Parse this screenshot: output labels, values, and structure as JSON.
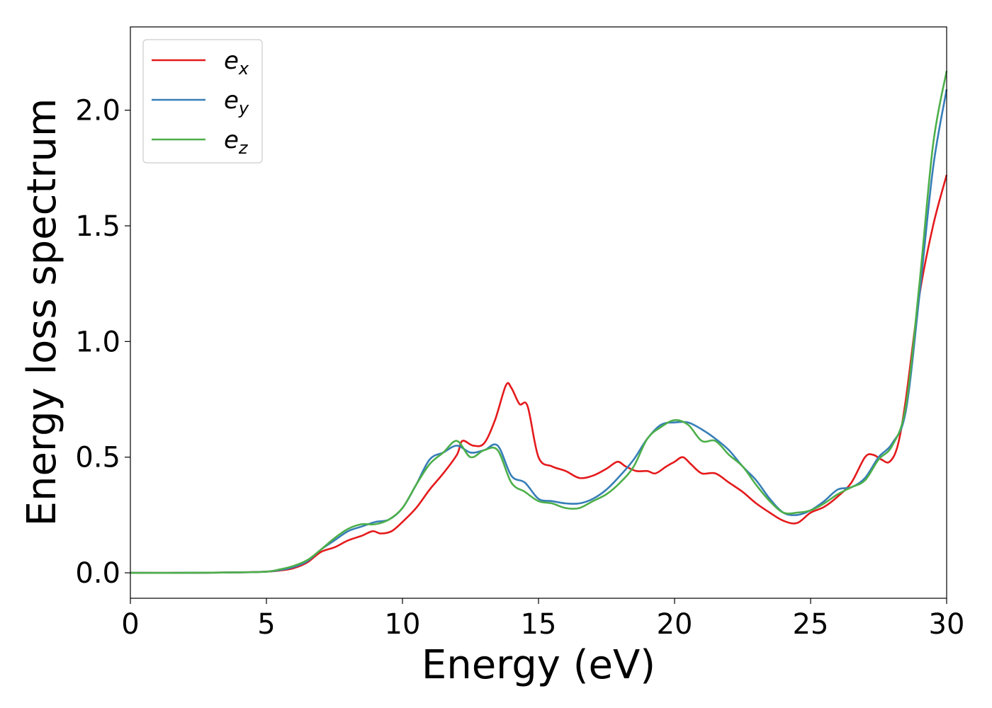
{
  "chart_data": {
    "type": "line",
    "xlabel": "Energy (eV)",
    "ylabel": "Energy loss spectrum",
    "xlim": [
      0,
      30
    ],
    "ylim": [
      -0.11,
      2.36
    ],
    "xticks": [
      0,
      5,
      10,
      15,
      20,
      25,
      30
    ],
    "xtick_labels": [
      "0",
      "5",
      "10",
      "15",
      "20",
      "25",
      "30"
    ],
    "yticks": [
      0.0,
      0.5,
      1.0,
      1.5,
      2.0
    ],
    "ytick_labels": [
      "0.0",
      "0.5",
      "1.0",
      "1.5",
      "2.0"
    ],
    "grid": false,
    "legend_position": "top-left",
    "series": [
      {
        "name_base": "e",
        "name_sub": "x",
        "color": "#e41a1c",
        "x": [
          0,
          2,
          4,
          5,
          5.5,
          6,
          6.5,
          7,
          7.5,
          8,
          8.5,
          8.9,
          9.2,
          9.6,
          10,
          10.5,
          11,
          11.5,
          12,
          12.2,
          12.6,
          13,
          13.4,
          13.8,
          14,
          14.3,
          14.6,
          15,
          15.5,
          16,
          16.5,
          17,
          17.5,
          17.9,
          18.2,
          18.6,
          19,
          19.3,
          19.7,
          20,
          20.3,
          20.6,
          21,
          21.5,
          22,
          22.5,
          23,
          23.5,
          24,
          24.5,
          25,
          25.5,
          26,
          26.5,
          27,
          27.3,
          27.6,
          27.9,
          28.2,
          28.5,
          29,
          29.5,
          30
        ],
        "y": [
          0,
          0,
          0.002,
          0.005,
          0.01,
          0.02,
          0.045,
          0.09,
          0.11,
          0.14,
          0.16,
          0.18,
          0.17,
          0.18,
          0.22,
          0.28,
          0.36,
          0.43,
          0.51,
          0.57,
          0.55,
          0.56,
          0.66,
          0.81,
          0.8,
          0.73,
          0.72,
          0.5,
          0.46,
          0.44,
          0.41,
          0.42,
          0.45,
          0.48,
          0.46,
          0.44,
          0.44,
          0.43,
          0.46,
          0.48,
          0.5,
          0.47,
          0.43,
          0.43,
          0.39,
          0.35,
          0.3,
          0.26,
          0.225,
          0.215,
          0.26,
          0.285,
          0.33,
          0.39,
          0.5,
          0.51,
          0.49,
          0.48,
          0.55,
          0.75,
          1.2,
          1.5,
          1.72
        ]
      },
      {
        "name_base": "e",
        "name_sub": "y",
        "color": "#377eb8",
        "x": [
          0,
          2,
          4,
          5,
          5.5,
          6,
          6.5,
          7,
          7.5,
          8,
          8.5,
          9,
          9.5,
          10,
          10.5,
          11,
          11.5,
          12,
          12.5,
          13,
          13.5,
          14,
          14.5,
          15,
          15.5,
          16,
          16.5,
          17,
          17.5,
          18,
          18.5,
          19,
          19.5,
          20,
          20.5,
          21,
          21.5,
          22,
          22.5,
          23,
          23.5,
          24,
          24.5,
          25,
          25.5,
          26,
          26.5,
          27,
          27.5,
          28,
          28.5,
          29,
          29.5,
          30
        ],
        "y": [
          0,
          0,
          0.002,
          0.005,
          0.012,
          0.025,
          0.05,
          0.1,
          0.14,
          0.18,
          0.2,
          0.22,
          0.23,
          0.28,
          0.38,
          0.49,
          0.52,
          0.55,
          0.52,
          0.53,
          0.55,
          0.42,
          0.39,
          0.32,
          0.31,
          0.3,
          0.3,
          0.32,
          0.36,
          0.42,
          0.49,
          0.58,
          0.64,
          0.65,
          0.65,
          0.62,
          0.58,
          0.53,
          0.46,
          0.4,
          0.32,
          0.26,
          0.25,
          0.27,
          0.31,
          0.36,
          0.37,
          0.41,
          0.5,
          0.56,
          0.7,
          1.2,
          1.75,
          2.09
        ]
      },
      {
        "name_base": "e",
        "name_sub": "z",
        "color": "#4daf4a",
        "x": [
          0,
          2,
          4,
          5,
          5.5,
          6,
          6.5,
          7,
          7.5,
          8,
          8.5,
          9,
          9.5,
          10,
          10.5,
          11,
          11.5,
          12,
          12.5,
          13,
          13.5,
          14,
          14.5,
          15,
          15.5,
          16,
          16.5,
          17,
          17.5,
          18,
          18.5,
          19,
          19.5,
          20,
          20.5,
          21,
          21.5,
          22,
          22.5,
          23,
          23.5,
          24,
          24.5,
          25,
          25.5,
          26,
          26.5,
          27,
          27.5,
          28,
          28.5,
          29,
          29.5,
          30
        ],
        "y": [
          0,
          0,
          0.002,
          0.005,
          0.015,
          0.03,
          0.055,
          0.1,
          0.15,
          0.19,
          0.21,
          0.21,
          0.23,
          0.28,
          0.38,
          0.47,
          0.52,
          0.57,
          0.5,
          0.53,
          0.53,
          0.39,
          0.35,
          0.31,
          0.3,
          0.28,
          0.28,
          0.31,
          0.34,
          0.39,
          0.46,
          0.58,
          0.63,
          0.66,
          0.64,
          0.57,
          0.57,
          0.51,
          0.46,
          0.38,
          0.31,
          0.26,
          0.26,
          0.27,
          0.3,
          0.34,
          0.37,
          0.4,
          0.49,
          0.55,
          0.72,
          1.25,
          1.85,
          2.17
        ]
      }
    ]
  }
}
